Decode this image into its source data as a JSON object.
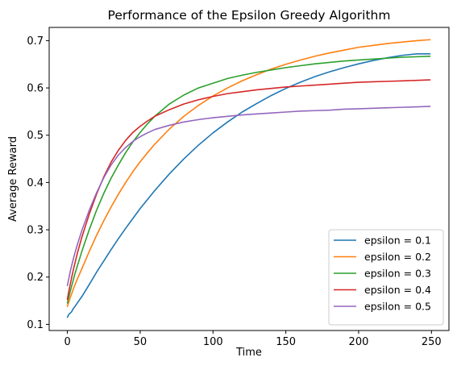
{
  "chart_data": {
    "type": "line",
    "title": "Performance of the Epsilon Greedy Algorithm",
    "xlabel": "Time",
    "ylabel": "Average Reward",
    "xlim": [
      -12.5,
      262
    ],
    "ylim": [
      0.087,
      0.728
    ],
    "xticks": [
      0,
      50,
      100,
      150,
      200,
      250
    ],
    "xtick_labels": [
      "0",
      "50",
      "100",
      "150",
      "200",
      "250"
    ],
    "yticks": [
      0.1,
      0.2,
      0.3,
      0.4,
      0.5,
      0.6,
      0.7
    ],
    "ytick_labels": [
      "0.1",
      "0.2",
      "0.3",
      "0.4",
      "0.5",
      "0.6",
      "0.7"
    ],
    "grid": false,
    "legend_position": "lower-right",
    "x": [
      0,
      1,
      2,
      3,
      4,
      5,
      7,
      10,
      15,
      20,
      25,
      30,
      35,
      40,
      45,
      50,
      55,
      60,
      70,
      80,
      90,
      100,
      110,
      120,
      130,
      140,
      150,
      160,
      170,
      180,
      190,
      200,
      210,
      220,
      230,
      240,
      249
    ],
    "series": [
      {
        "name": "epsilon = 0.1",
        "color": "#1f77b4",
        "values": [
          0.115,
          0.121,
          0.124,
          0.127,
          0.133,
          0.137,
          0.146,
          0.159,
          0.184,
          0.21,
          0.234,
          0.258,
          0.281,
          0.303,
          0.324,
          0.345,
          0.364,
          0.383,
          0.418,
          0.45,
          0.479,
          0.505,
          0.528,
          0.549,
          0.567,
          0.584,
          0.599,
          0.612,
          0.624,
          0.634,
          0.643,
          0.651,
          0.658,
          0.664,
          0.669,
          0.672,
          0.672
        ]
      },
      {
        "name": "epsilon = 0.2",
        "color": "#ff7f0e",
        "values": [
          0.138,
          0.147,
          0.157,
          0.165,
          0.174,
          0.182,
          0.197,
          0.218,
          0.254,
          0.288,
          0.319,
          0.348,
          0.375,
          0.4,
          0.423,
          0.444,
          0.463,
          0.481,
          0.513,
          0.54,
          0.563,
          0.583,
          0.6,
          0.615,
          0.628,
          0.64,
          0.65,
          0.659,
          0.667,
          0.674,
          0.68,
          0.686,
          0.69,
          0.694,
          0.697,
          0.7,
          0.702
        ]
      },
      {
        "name": "epsilon = 0.3",
        "color": "#2ca02c",
        "values": [
          0.145,
          0.158,
          0.17,
          0.182,
          0.193,
          0.205,
          0.225,
          0.255,
          0.3,
          0.341,
          0.377,
          0.409,
          0.437,
          0.463,
          0.486,
          0.506,
          0.524,
          0.54,
          0.566,
          0.585,
          0.6,
          0.61,
          0.62,
          0.627,
          0.633,
          0.638,
          0.643,
          0.647,
          0.651,
          0.654,
          0.657,
          0.659,
          0.661,
          0.663,
          0.665,
          0.666,
          0.667
        ]
      },
      {
        "name": "epsilon = 0.4",
        "color": "#d62728",
        "values": [
          0.153,
          0.17,
          0.185,
          0.2,
          0.214,
          0.227,
          0.252,
          0.285,
          0.333,
          0.375,
          0.412,
          0.443,
          0.468,
          0.489,
          0.506,
          0.519,
          0.53,
          0.54,
          0.554,
          0.566,
          0.575,
          0.582,
          0.588,
          0.592,
          0.596,
          0.599,
          0.602,
          0.604,
          0.606,
          0.608,
          0.61,
          0.612,
          0.613,
          0.614,
          0.615,
          0.616,
          0.617
        ]
      },
      {
        "name": "epsilon = 0.5",
        "color": "#9467bd",
        "values": [
          0.182,
          0.197,
          0.212,
          0.225,
          0.237,
          0.249,
          0.27,
          0.299,
          0.341,
          0.378,
          0.41,
          0.437,
          0.458,
          0.474,
          0.487,
          0.497,
          0.505,
          0.512,
          0.521,
          0.528,
          0.533,
          0.537,
          0.54,
          0.543,
          0.545,
          0.547,
          0.549,
          0.551,
          0.552,
          0.553,
          0.555,
          0.556,
          0.557,
          0.558,
          0.559,
          0.56,
          0.561
        ]
      }
    ]
  }
}
